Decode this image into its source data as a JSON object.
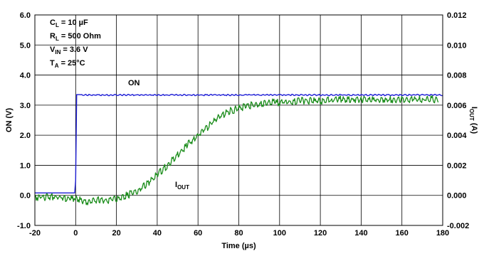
{
  "chart_data": {
    "type": "line",
    "title": "",
    "xlabel": "Time (µs)",
    "ylabel_left": "ON (V)",
    "ylabel_right": {
      "base": "I",
      "sub": "OUT",
      "suffix": " (A)"
    },
    "xlim": [
      -20,
      180
    ],
    "ylim_left": [
      -1.0,
      6.0
    ],
    "ylim_right": [
      -0.002,
      0.012
    ],
    "x_ticks": [
      "-20",
      "0",
      "20",
      "40",
      "60",
      "80",
      "100",
      "120",
      "140",
      "160",
      "180"
    ],
    "y_left_ticks": [
      "6.0",
      "5.0",
      "4.0",
      "3.0",
      "2.0",
      "1.0",
      "0.0",
      "-1.0"
    ],
    "y_right_ticks": [
      "0.012",
      "0.010",
      "0.008",
      "0.006",
      "0.004",
      "0.002",
      "0.000",
      "-0.002"
    ],
    "grid": true,
    "conditions": [
      {
        "base": "C",
        "sub": "L",
        "rest": " = 10 µF"
      },
      {
        "base": "R",
        "sub": "L",
        "rest": " = 500 Ohm"
      },
      {
        "base": "V",
        "sub": "IN",
        "rest": " = 3.6 V"
      },
      {
        "base": "T",
        "sub": "A",
        "rest": " = 25°C"
      }
    ],
    "series": [
      {
        "name": "ON",
        "axis": "left",
        "color": "#1f1fd6",
        "label": {
          "text": "ON",
          "sub": ""
        },
        "x": [
          -20,
          -0.3,
          0,
          0.2,
          0.5,
          180
        ],
        "y": [
          0.08,
          0.08,
          0.5,
          3.0,
          3.35,
          3.35
        ]
      },
      {
        "name": "IOUT",
        "axis": "right",
        "color": "#1a8c1a",
        "label": {
          "text": "I",
          "sub": "OUT"
        },
        "x": [
          -20,
          -10,
          0,
          5,
          10,
          15,
          20,
          25,
          30,
          35,
          40,
          45,
          50,
          55,
          60,
          65,
          70,
          75,
          80,
          85,
          90,
          95,
          100,
          110,
          120,
          130,
          140,
          150,
          160,
          170,
          178
        ],
        "y": [
          0.0,
          0.0,
          -0.0001,
          -0.0003,
          -0.0002,
          -0.0002,
          -0.0001,
          0.0001,
          0.0004,
          0.0009,
          0.0015,
          0.0021,
          0.0028,
          0.0035,
          0.0041,
          0.0047,
          0.0053,
          0.0057,
          0.0059,
          0.0061,
          0.0062,
          0.0063,
          0.0063,
          0.0064,
          0.0064,
          0.0065,
          0.0065,
          0.0065,
          0.0065,
          0.0065,
          0.0065
        ]
      }
    ]
  }
}
